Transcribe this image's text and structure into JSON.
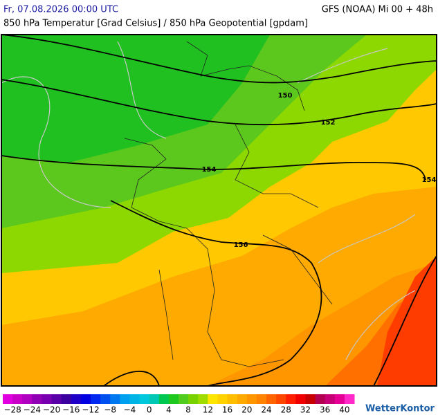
{
  "header": {
    "datetime": "Fr, 07.08.2026 00:00 UTC",
    "model": "GFS (NOAA) Mi 00 + 48h",
    "subtitle": "850 hPa Temperatur [Grad Celsius] / 850 hPa Geopotential [gpdam]"
  },
  "map": {
    "contour_labels": [
      "150",
      "152",
      "154",
      "154",
      "156"
    ]
  },
  "legend": {
    "labels": [
      "−28",
      "−24",
      "−20",
      "−16",
      "−12",
      "−8",
      "−4",
      "0",
      "4",
      "8",
      "12",
      "16",
      "20",
      "24",
      "28",
      "32",
      "36",
      "40"
    ]
  },
  "logo": "WetterKontor"
}
